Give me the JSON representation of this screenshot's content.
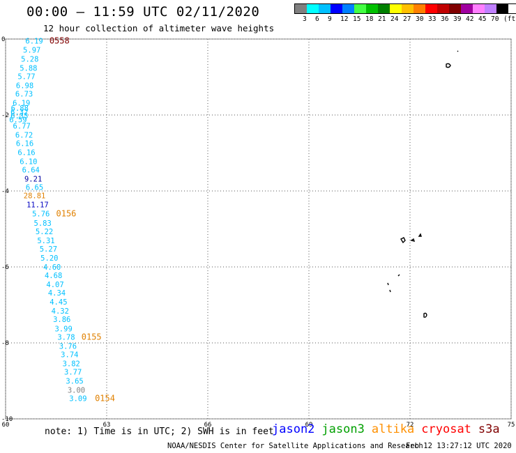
{
  "title": "00:00 – 11:59 UTC 02/11/2020",
  "subtitle": "12 hour collection of altimeter wave heights",
  "legend": {
    "colors": [
      "#808080",
      "#00ffff",
      "#00c0ff",
      "#0000ff",
      "#0080ff",
      "#44ff44",
      "#00c000",
      "#008000",
      "#ffff00",
      "#ffc000",
      "#ff8000",
      "#ff0000",
      "#c00000",
      "#800000",
      "#a000a0",
      "#ff80ff",
      "#c080ff",
      "#000000"
    ],
    "ticks": [
      "3",
      "6",
      "9",
      "12",
      "15",
      "18",
      "21",
      "24",
      "27",
      "30",
      "33",
      "36",
      "39",
      "42",
      "45",
      "70",
      "(ft)"
    ]
  },
  "chart_data": {
    "type": "map",
    "x_axis": {
      "ticks": [
        "60",
        "63",
        "66",
        "69",
        "72",
        "75"
      ],
      "range": [
        60,
        75
      ]
    },
    "y_axis": {
      "ticks": [
        "0",
        "-2",
        "-4",
        "-6",
        "-8",
        "-10"
      ],
      "range": [
        -10,
        0
      ]
    },
    "grid": "dotted",
    "observations": [
      {
        "v": "6.19",
        "lon": 60.85,
        "lat": -0.05,
        "color": "#00c0ff"
      },
      {
        "v": "5.97",
        "lon": 60.78,
        "lat": -0.28,
        "color": "#00c0ff"
      },
      {
        "v": "5.28",
        "lon": 60.72,
        "lat": -0.52,
        "color": "#00c0ff"
      },
      {
        "v": "5.88",
        "lon": 60.68,
        "lat": -0.76,
        "color": "#00c0ff"
      },
      {
        "v": "5.77",
        "lon": 60.62,
        "lat": -0.98,
        "color": "#00c0ff"
      },
      {
        "v": "6.98",
        "lon": 60.57,
        "lat": -1.22,
        "color": "#00c0ff"
      },
      {
        "v": "6.73",
        "lon": 60.55,
        "lat": -1.44,
        "color": "#00c0ff"
      },
      {
        "v": "6.19",
        "lon": 60.47,
        "lat": -1.68,
        "color": "#00c0ff"
      },
      {
        "v": "6.88",
        "lon": 60.42,
        "lat": -1.82,
        "color": "#00c0ff"
      },
      {
        "v": "6.32",
        "lon": 60.41,
        "lat": -1.92,
        "color": "#00c0ff"
      },
      {
        "v": "6.35",
        "lon": 60.41,
        "lat": -2.02,
        "color": "#00c0ff"
      },
      {
        "v": "6.59",
        "lon": 60.37,
        "lat": -2.12,
        "color": "#00c0ff"
      },
      {
        "v": "6.77",
        "lon": 60.48,
        "lat": -2.28,
        "color": "#00c0ff"
      },
      {
        "v": "6.72",
        "lon": 60.55,
        "lat": -2.52,
        "color": "#00c0ff"
      },
      {
        "v": "6.16",
        "lon": 60.57,
        "lat": -2.74,
        "color": "#00c0ff"
      },
      {
        "v": "6.16",
        "lon": 60.62,
        "lat": -2.98,
        "color": "#00c0ff"
      },
      {
        "v": "6.10",
        "lon": 60.68,
        "lat": -3.22,
        "color": "#00c0ff"
      },
      {
        "v": "6.64",
        "lon": 60.75,
        "lat": -3.44,
        "color": "#00c0ff"
      },
      {
        "v": "9.21",
        "lon": 60.82,
        "lat": -3.68,
        "color": "#0000a0"
      },
      {
        "v": "6.65",
        "lon": 60.86,
        "lat": -3.9,
        "color": "#00c0ff"
      },
      {
        "v": "28.81",
        "lon": 60.86,
        "lat": -4.12,
        "color": "#e08000"
      },
      {
        "v": "11.17",
        "lon": 60.95,
        "lat": -4.36,
        "color": "#0000c0"
      },
      {
        "v": "5.76",
        "lon": 61.05,
        "lat": -4.6,
        "color": "#00c0ff"
      },
      {
        "v": "5.83",
        "lon": 61.1,
        "lat": -4.84,
        "color": "#00c0ff"
      },
      {
        "v": "5.22",
        "lon": 61.15,
        "lat": -5.06,
        "color": "#00c0ff"
      },
      {
        "v": "5.31",
        "lon": 61.2,
        "lat": -5.3,
        "color": "#00c0ff"
      },
      {
        "v": "5.27",
        "lon": 61.27,
        "lat": -5.52,
        "color": "#00c0ff"
      },
      {
        "v": "5.20",
        "lon": 61.3,
        "lat": -5.76,
        "color": "#00c0ff"
      },
      {
        "v": "4.60",
        "lon": 61.38,
        "lat": -6.0,
        "color": "#00c0ff"
      },
      {
        "v": "4.68",
        "lon": 61.42,
        "lat": -6.22,
        "color": "#00c0ff"
      },
      {
        "v": "4.07",
        "lon": 61.47,
        "lat": -6.46,
        "color": "#00c0ff"
      },
      {
        "v": "4.34",
        "lon": 61.52,
        "lat": -6.68,
        "color": "#00c0ff"
      },
      {
        "v": "4.45",
        "lon": 61.57,
        "lat": -6.92,
        "color": "#00c0ff"
      },
      {
        "v": "4.32",
        "lon": 61.62,
        "lat": -7.16,
        "color": "#00c0ff"
      },
      {
        "v": "3.86",
        "lon": 61.67,
        "lat": -7.38,
        "color": "#00c0ff"
      },
      {
        "v": "3.99",
        "lon": 61.72,
        "lat": -7.62,
        "color": "#00c0ff"
      },
      {
        "v": "3.78",
        "lon": 61.8,
        "lat": -7.84,
        "color": "#00c0ff"
      },
      {
        "v": "3.76",
        "lon": 61.85,
        "lat": -8.08,
        "color": "#00c0ff"
      },
      {
        "v": "3.74",
        "lon": 61.9,
        "lat": -8.3,
        "color": "#00c0ff"
      },
      {
        "v": "3.82",
        "lon": 61.95,
        "lat": -8.54,
        "color": "#00c0ff"
      },
      {
        "v": "3.77",
        "lon": 62.0,
        "lat": -8.76,
        "color": "#00c0ff"
      },
      {
        "v": "3.65",
        "lon": 62.05,
        "lat": -9.0,
        "color": "#00c0ff"
      },
      {
        "v": "3.00",
        "lon": 62.1,
        "lat": -9.24,
        "color": "#808080"
      },
      {
        "v": "3.09",
        "lon": 62.15,
        "lat": -9.46,
        "color": "#00c0ff"
      }
    ],
    "time_labels": [
      {
        "t": "0558",
        "lon": 61.3,
        "lat": -0.05,
        "color": "#800000"
      },
      {
        "t": "0156",
        "lon": 61.5,
        "lat": -4.6,
        "color": "#e08000"
      },
      {
        "t": "0155",
        "lon": 62.25,
        "lat": -7.84,
        "color": "#e08000"
      },
      {
        "t": "0154",
        "lon": 62.65,
        "lat": -9.46,
        "color": "#e08000"
      }
    ]
  },
  "note": "note: 1) Time is in UTC; 2) SWH is in feet",
  "satellites": [
    {
      "name": "jason2",
      "color": "#0000ff"
    },
    {
      "name": "jason3",
      "color": "#00a000"
    },
    {
      "name": "altika",
      "color": "#ff9000"
    },
    {
      "name": "cryosat",
      "color": "#ff0000"
    },
    {
      "name": "s3a",
      "color": "#800000"
    }
  ],
  "footer": "NOAA/NESDIS Center for Satellite Applications and Research",
  "generated": "Feb 12 13:27:12 UTC 2020"
}
